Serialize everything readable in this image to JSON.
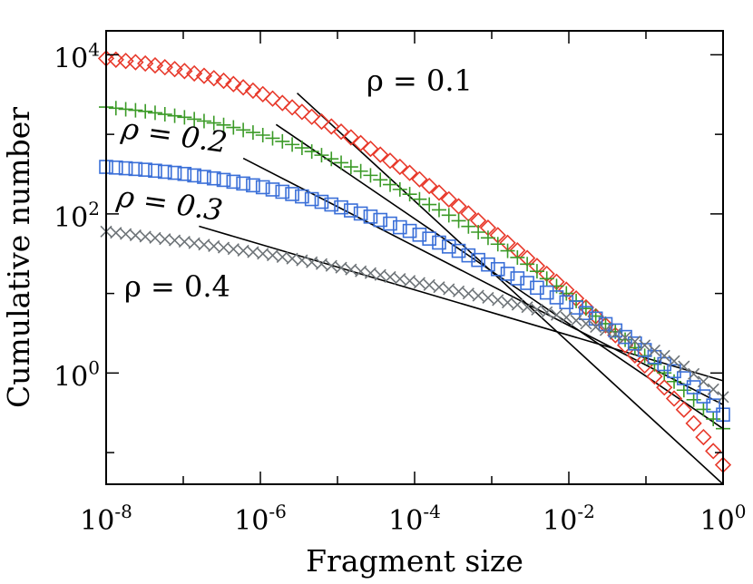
{
  "chart_data": {
    "type": "scatter",
    "title": "",
    "xlabel": "Fragment size",
    "ylabel": "Cumulative number",
    "xscale": "log",
    "yscale": "log",
    "xlim": [
      1e-08,
      1
    ],
    "ylim": [
      0.04,
      20000
    ],
    "grid": false,
    "x_ticks": [
      {
        "base": "10",
        "exp": "-8"
      },
      {
        "base": "10",
        "exp": "-6"
      },
      {
        "base": "10",
        "exp": "-4"
      },
      {
        "base": "10",
        "exp": "-2"
      },
      {
        "base": "10",
        "exp": "0"
      }
    ],
    "y_ticks": [
      {
        "base": "10",
        "exp": "0"
      },
      {
        "base": "10",
        "exp": "2"
      },
      {
        "base": "10",
        "exp": "4"
      }
    ],
    "annotations": [
      {
        "text": "ρ = 0.1",
        "italic": false
      },
      {
        "text": "ρ = 0.2",
        "italic": true
      },
      {
        "text": "ρ = 0.3",
        "italic": true
      },
      {
        "text": "ρ = 0.4",
        "italic": false
      }
    ],
    "series": [
      {
        "name": "ρ = 0.1",
        "marker": "diamond",
        "color": "#e8392b",
        "x": [
          1e-08,
          3.16e-08,
          1e-07,
          3.16e-07,
          1e-06,
          3.16e-06,
          1e-05,
          3.16e-05,
          0.0001,
          0.000316,
          0.001,
          0.00316,
          0.01,
          0.0316,
          0.1,
          0.316,
          1
        ],
        "y": [
          9000,
          7800,
          6300,
          4800,
          3300,
          2000,
          1150,
          600,
          300,
          140,
          62,
          26,
          10.5,
          3.8,
          1.2,
          0.34,
          0.07
        ]
      },
      {
        "name": "ρ = 0.2",
        "marker": "plus",
        "color": "#3a9a26",
        "x": [
          1e-08,
          3.16e-08,
          1e-07,
          3.16e-07,
          1e-06,
          3.16e-06,
          1e-05,
          3.16e-05,
          0.0001,
          0.000316,
          0.001,
          0.00316,
          0.01,
          0.0316,
          0.1,
          0.316,
          1
        ],
        "y": [
          2200,
          1950,
          1650,
          1330,
          1000,
          700,
          460,
          285,
          165,
          90,
          47,
          22,
          9.5,
          4.0,
          1.6,
          0.6,
          0.2
        ]
      },
      {
        "name": "ρ = 0.3",
        "marker": "square",
        "color": "#3a6fd8",
        "x": [
          1e-08,
          3.16e-08,
          1e-07,
          3.16e-07,
          1e-06,
          3.16e-06,
          1e-05,
          3.16e-05,
          0.0001,
          0.000316,
          0.001,
          0.00316,
          0.01,
          0.0316,
          0.1,
          0.316,
          1
        ],
        "y": [
          390,
          360,
          320,
          270,
          220,
          170,
          125,
          88,
          58,
          37,
          22,
          13,
          7.5,
          4.0,
          1.9,
          0.85,
          0.3
        ]
      },
      {
        "name": "ρ = 0.4",
        "marker": "cross",
        "color": "#6e7478",
        "x": [
          1e-08,
          3.16e-08,
          1e-07,
          3.16e-07,
          1e-06,
          3.16e-06,
          1e-05,
          3.16e-05,
          0.0001,
          0.000316,
          0.001,
          0.00316,
          0.01,
          0.0316,
          0.1,
          0.316,
          1
        ],
        "y": [
          60,
          52,
          45,
          38,
          32,
          26.5,
          21.5,
          17.5,
          14,
          11,
          8.6,
          6.6,
          4.9,
          3.4,
          2.2,
          1.2,
          0.5
        ]
      }
    ],
    "fit_lines": [
      {
        "name": "fit ρ = 0.1",
        "x": [
          3e-06,
          1
        ],
        "y": [
          3300,
          0.04
        ]
      },
      {
        "name": "fit ρ = 0.2",
        "x": [
          1.6e-06,
          1
        ],
        "y": [
          1330,
          0.2
        ]
      },
      {
        "name": "fit ρ = 0.3",
        "x": [
          6e-07,
          1
        ],
        "y": [
          500,
          0.4
        ]
      },
      {
        "name": "fit ρ = 0.4",
        "x": [
          1.6e-07,
          1
        ],
        "y": [
          70,
          0.8
        ]
      }
    ]
  }
}
